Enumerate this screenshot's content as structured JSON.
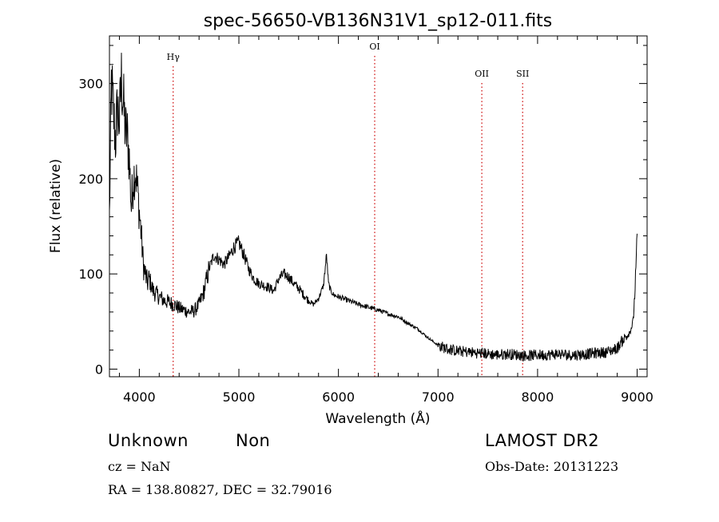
{
  "chart_data": {
    "type": "line",
    "title": "spec-56650-VB136N31V1_sp12-011.fits",
    "xlabel": "Wavelength (Å)",
    "ylabel": "Flux (relative)",
    "xlim": [
      3700,
      9100
    ],
    "ylim": [
      -8,
      350
    ],
    "xticks": [
      4000,
      5000,
      6000,
      7000,
      8000,
      9000
    ],
    "yticks": [
      0,
      100,
      200,
      300
    ],
    "grid": false,
    "series": [
      {
        "x": [
          3700,
          3720,
          3740,
          3760,
          3780,
          3800,
          3820,
          3840,
          3860,
          3880,
          3900,
          3920,
          3940,
          3960,
          3980,
          4000,
          4020,
          4040,
          4060,
          4080,
          4100,
          4120,
          4140,
          4160,
          4180,
          4200,
          4250,
          4300,
          4350,
          4400,
          4450,
          4500,
          4550,
          4600,
          4650,
          4700,
          4750,
          4800,
          4850,
          4900,
          4950,
          5000,
          5050,
          5100,
          5150,
          5200,
          5250,
          5300,
          5350,
          5400,
          5450,
          5500,
          5550,
          5600,
          5650,
          5700,
          5750,
          5800,
          5850,
          5880,
          5900,
          5920,
          5950,
          6000,
          6100,
          6200,
          6300,
          6400,
          6500,
          6600,
          6700,
          6800,
          6900,
          7000,
          7100,
          7200,
          7300,
          7400,
          7500,
          7600,
          7700,
          7800,
          7900,
          8000,
          8100,
          8200,
          8300,
          8400,
          8500,
          8600,
          8700,
          8800,
          8850,
          8900,
          8930,
          8960,
          8980,
          9000
        ],
        "y": [
          160,
          300,
          270,
          240,
          275,
          260,
          305,
          280,
          250,
          245,
          220,
          170,
          200,
          210,
          190,
          165,
          140,
          110,
          100,
          90,
          95,
          88,
          82,
          80,
          78,
          76,
          72,
          70,
          68,
          64,
          62,
          60,
          61,
          68,
          82,
          105,
          120,
          115,
          110,
          118,
          128,
          133,
          120,
          105,
          95,
          90,
          88,
          86,
          82,
          95,
          100,
          97,
          90,
          85,
          78,
          72,
          68,
          74,
          88,
          120,
          90,
          83,
          78,
          76,
          72,
          68,
          65,
          62,
          58,
          55,
          48,
          42,
          33,
          25,
          21,
          19,
          18,
          17,
          16,
          15,
          16,
          15,
          14,
          15,
          15,
          16,
          15,
          15,
          16,
          17,
          18,
          22,
          30,
          35,
          40,
          50,
          85,
          135
        ]
      }
    ],
    "annotations": [
      {
        "label": "Hγ",
        "x": 4340
      },
      {
        "label": "OI",
        "x": 6364
      },
      {
        "label": "OII",
        "x": 7440
      },
      {
        "label": "SII",
        "x": 7850
      }
    ]
  },
  "info": {
    "classification": "Unknown",
    "subclass": "Non",
    "survey": "LAMOST DR2",
    "cz": "cz = NaN",
    "obs_date": "Obs-Date: 20131223",
    "coords": "RA = 138.80827, DEC =  32.79016"
  }
}
